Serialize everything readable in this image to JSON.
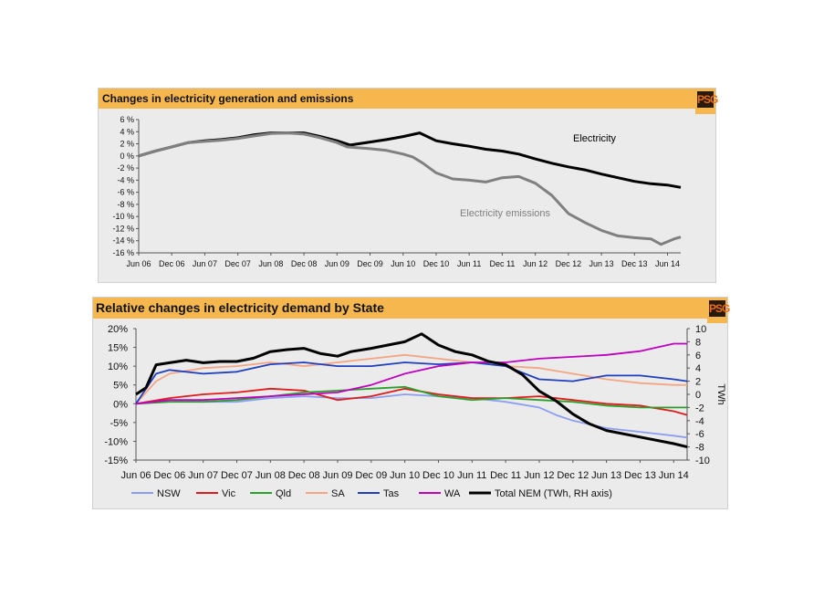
{
  "chart_data": [
    {
      "type": "line",
      "title": "Changes in electricity generation and emissions",
      "x": [
        "Jun 06",
        "Dec 06",
        "Jun 07",
        "Dec 07",
        "Jun 08",
        "Dec 08",
        "Jun 09",
        "Dec 09",
        "Jun 10",
        "Dec 10",
        "Jun 11",
        "Dec 11",
        "Jun 12",
        "Dec 12",
        "Jun 13",
        "Dec 13",
        "Jun 14"
      ],
      "ylim": [
        -16,
        6
      ],
      "yticks": [
        "6 %",
        "4 %",
        "2 %",
        "0 %",
        "-2 %",
        "-4 %",
        "-6 %",
        "-8 %",
        "-10 %",
        "-12 %",
        "-14 %",
        "-16 %"
      ],
      "grid": false,
      "series": [
        {
          "name": "Electricity",
          "color": "#000000",
          "points": [
            [
              0,
              0
            ],
            [
              0.5,
              0.8
            ],
            [
              1,
              1.5
            ],
            [
              1.5,
              2.2
            ],
            [
              2,
              2.5
            ],
            [
              2.5,
              2.7
            ],
            [
              3,
              3
            ],
            [
              3.5,
              3.5
            ],
            [
              4,
              3.8
            ],
            [
              4.5,
              3.8
            ],
            [
              5,
              3.8
            ],
            [
              5.5,
              3.2
            ],
            [
              6,
              2.5
            ],
            [
              6.4,
              1.8
            ],
            [
              7,
              2.3
            ],
            [
              7.5,
              2.7
            ],
            [
              8,
              3.2
            ],
            [
              8.5,
              3.8
            ],
            [
              9,
              2.5
            ],
            [
              9.5,
              2
            ],
            [
              10,
              1.6
            ],
            [
              10.5,
              1.1
            ],
            [
              11,
              0.8
            ],
            [
              11.5,
              0.3
            ],
            [
              12,
              -0.5
            ],
            [
              12.5,
              -1.2
            ],
            [
              13,
              -1.8
            ],
            [
              13.5,
              -2.3
            ],
            [
              14,
              -3
            ],
            [
              14.5,
              -3.6
            ],
            [
              15,
              -4.2
            ],
            [
              15.5,
              -4.6
            ],
            [
              16,
              -4.8
            ],
            [
              16.4,
              -5.2
            ]
          ]
        },
        {
          "name": "Electricity emissions",
          "color": "#808080",
          "points": [
            [
              0,
              0
            ],
            [
              0.5,
              0.8
            ],
            [
              1,
              1.5
            ],
            [
              1.5,
              2.2
            ],
            [
              2,
              2.4
            ],
            [
              2.5,
              2.6
            ],
            [
              3,
              2.9
            ],
            [
              3.5,
              3.3
            ],
            [
              4,
              3.7
            ],
            [
              4.5,
              3.8
            ],
            [
              5,
              3.6
            ],
            [
              5.5,
              3
            ],
            [
              6,
              2.2
            ],
            [
              6.3,
              1.5
            ],
            [
              7,
              1.2
            ],
            [
              7.5,
              0.9
            ],
            [
              8,
              0.3
            ],
            [
              8.3,
              -0.2
            ],
            [
              8.6,
              -1.2
            ],
            [
              9,
              -2.8
            ],
            [
              9.5,
              -3.8
            ],
            [
              10,
              -4
            ],
            [
              10.5,
              -4.3
            ],
            [
              11,
              -3.6
            ],
            [
              11.5,
              -3.4
            ],
            [
              12,
              -4.5
            ],
            [
              12.5,
              -6.5
            ],
            [
              13,
              -9.5
            ],
            [
              13.5,
              -11
            ],
            [
              14,
              -12.3
            ],
            [
              14.5,
              -13.2
            ],
            [
              15,
              -13.5
            ],
            [
              15.5,
              -13.7
            ],
            [
              15.8,
              -14.6
            ],
            [
              16.2,
              -13.7
            ],
            [
              16.4,
              -13.4
            ]
          ]
        }
      ],
      "annotations": [
        "Electricity",
        "Electricity emissions"
      ]
    },
    {
      "type": "line",
      "title": "Relative changes in electricity demand  by State",
      "x": [
        "Jun 06",
        "Dec 06",
        "Jun 07",
        "Dec 07",
        "Jun 08",
        "Dec 08",
        "Jun 09",
        "Dec 09",
        "Jun 10",
        "Dec 10",
        "Jun 11",
        "Dec 11",
        "Jun 12",
        "Dec 12",
        "Jun 13",
        "Dec 13",
        "Jun 14"
      ],
      "ylim": [
        -15,
        20
      ],
      "yticks": [
        "20%",
        "15%",
        "10%",
        "5%",
        "0%",
        "-5%",
        "-10%",
        "-15%"
      ],
      "y2lim": [
        -10,
        10
      ],
      "y2ticks": [
        "10",
        "8",
        "6",
        "4",
        "2",
        "0",
        "-2",
        "-4",
        "-6",
        "-8",
        "-10"
      ],
      "y2label": "TWh",
      "grid": false,
      "series": [
        {
          "name": "NSW",
          "color": "#8c9ef0",
          "points": [
            [
              0,
              0
            ],
            [
              1,
              1
            ],
            [
              2,
              0.5
            ],
            [
              3,
              0.5
            ],
            [
              4,
              1.5
            ],
            [
              5,
              2
            ],
            [
              6,
              1.5
            ],
            [
              7,
              1.5
            ],
            [
              8,
              2.5
            ],
            [
              9,
              2
            ],
            [
              10,
              1.5
            ],
            [
              11,
              0.5
            ],
            [
              12,
              -1
            ],
            [
              12.5,
              -3
            ],
            [
              13,
              -4.5
            ],
            [
              14,
              -6.5
            ],
            [
              15,
              -7.5
            ],
            [
              16,
              -8.5
            ],
            [
              16.4,
              -9
            ]
          ]
        },
        {
          "name": "Vic",
          "color": "#e01b1b",
          "points": [
            [
              0,
              0
            ],
            [
              1,
              1.5
            ],
            [
              2,
              2.5
            ],
            [
              3,
              3
            ],
            [
              4,
              4
            ],
            [
              5,
              3.5
            ],
            [
              6,
              1
            ],
            [
              7,
              2
            ],
            [
              8,
              4
            ],
            [
              9,
              2.5
            ],
            [
              10,
              1.5
            ],
            [
              11,
              1.5
            ],
            [
              12,
              2
            ],
            [
              13,
              1
            ],
            [
              14,
              0
            ],
            [
              15,
              -0.5
            ],
            [
              16,
              -2
            ],
            [
              16.4,
              -3
            ]
          ]
        },
        {
          "name": "Qld",
          "color": "#2ca02c",
          "points": [
            [
              0,
              0
            ],
            [
              1,
              0.5
            ],
            [
              2,
              0.5
            ],
            [
              3,
              1
            ],
            [
              4,
              2
            ],
            [
              5,
              3
            ],
            [
              6,
              3.5
            ],
            [
              7,
              4
            ],
            [
              8,
              4.5
            ],
            [
              9,
              2
            ],
            [
              10,
              1
            ],
            [
              11,
              1.5
            ],
            [
              12,
              1
            ],
            [
              13,
              0.5
            ],
            [
              14,
              -0.5
            ],
            [
              15,
              -1
            ],
            [
              16,
              -1
            ],
            [
              16.4,
              -1
            ]
          ]
        },
        {
          "name": "SA",
          "color": "#f4a582",
          "points": [
            [
              0,
              0
            ],
            [
              0.6,
              6
            ],
            [
              1,
              8
            ],
            [
              2,
              9.5
            ],
            [
              3,
              10
            ],
            [
              4,
              11
            ],
            [
              5,
              10
            ],
            [
              6,
              11
            ],
            [
              7,
              12
            ],
            [
              8,
              13
            ],
            [
              9,
              12
            ],
            [
              10,
              11
            ],
            [
              11,
              10
            ],
            [
              12,
              9.5
            ],
            [
              13,
              8
            ],
            [
              14,
              6.5
            ],
            [
              15,
              5.5
            ],
            [
              16,
              5
            ],
            [
              16.4,
              5
            ]
          ]
        },
        {
          "name": "Tas",
          "color": "#1f3fbf",
          "points": [
            [
              0,
              0
            ],
            [
              0.6,
              8
            ],
            [
              1,
              9
            ],
            [
              2,
              8
            ],
            [
              3,
              8.5
            ],
            [
              4,
              10.5
            ],
            [
              5,
              11
            ],
            [
              6,
              10
            ],
            [
              7,
              10
            ],
            [
              8,
              11
            ],
            [
              9,
              10.5
            ],
            [
              10,
              11
            ],
            [
              11,
              10
            ],
            [
              12,
              6.5
            ],
            [
              13,
              6
            ],
            [
              14,
              7.5
            ],
            [
              15,
              7.5
            ],
            [
              16,
              6.5
            ],
            [
              16.4,
              6
            ]
          ]
        },
        {
          "name": "WA",
          "color": "#c000c0",
          "points": [
            [
              0,
              0
            ],
            [
              1,
              1
            ],
            [
              2,
              1
            ],
            [
              3,
              1.5
            ],
            [
              4,
              2
            ],
            [
              5,
              2.5
            ],
            [
              6,
              3
            ],
            [
              7,
              5
            ],
            [
              8,
              8
            ],
            [
              9,
              10
            ],
            [
              10,
              11
            ],
            [
              11,
              11
            ],
            [
              12,
              12
            ],
            [
              13,
              12.5
            ],
            [
              14,
              13
            ],
            [
              15,
              14
            ],
            [
              16,
              16
            ],
            [
              16.4,
              16
            ]
          ]
        }
      ],
      "series_rh": [
        {
          "name": "Total NEM (TWh, RH axis)",
          "color": "#000000",
          "points": [
            [
              0,
              0
            ],
            [
              0.3,
              1
            ],
            [
              0.6,
              4.5
            ],
            [
              1,
              4.8
            ],
            [
              1.5,
              5.2
            ],
            [
              2,
              4.8
            ],
            [
              2.5,
              5
            ],
            [
              3,
              5
            ],
            [
              3.5,
              5.5
            ],
            [
              4,
              6.5
            ],
            [
              4.5,
              6.8
            ],
            [
              5,
              7
            ],
            [
              5.5,
              6.2
            ],
            [
              6,
              5.8
            ],
            [
              6.4,
              6.5
            ],
            [
              7,
              7
            ],
            [
              7.5,
              7.5
            ],
            [
              8,
              8
            ],
            [
              8.5,
              9.2
            ],
            [
              9,
              7.5
            ],
            [
              9.5,
              6.5
            ],
            [
              10,
              6
            ],
            [
              10.5,
              5
            ],
            [
              11,
              4.5
            ],
            [
              11.5,
              3
            ],
            [
              12,
              0.5
            ],
            [
              12.5,
              -1
            ],
            [
              13,
              -3
            ],
            [
              13.5,
              -4.5
            ],
            [
              14,
              -5.5
            ],
            [
              15,
              -6.5
            ],
            [
              16,
              -7.5
            ],
            [
              16.4,
              -8
            ]
          ]
        }
      ],
      "legend": [
        "NSW",
        "Vic",
        "Qld",
        "SA",
        "Tas",
        "WA",
        "Total NEM (TWh, RH axis)"
      ],
      "legend_position": "bottom"
    }
  ],
  "logo_text": "PSG"
}
